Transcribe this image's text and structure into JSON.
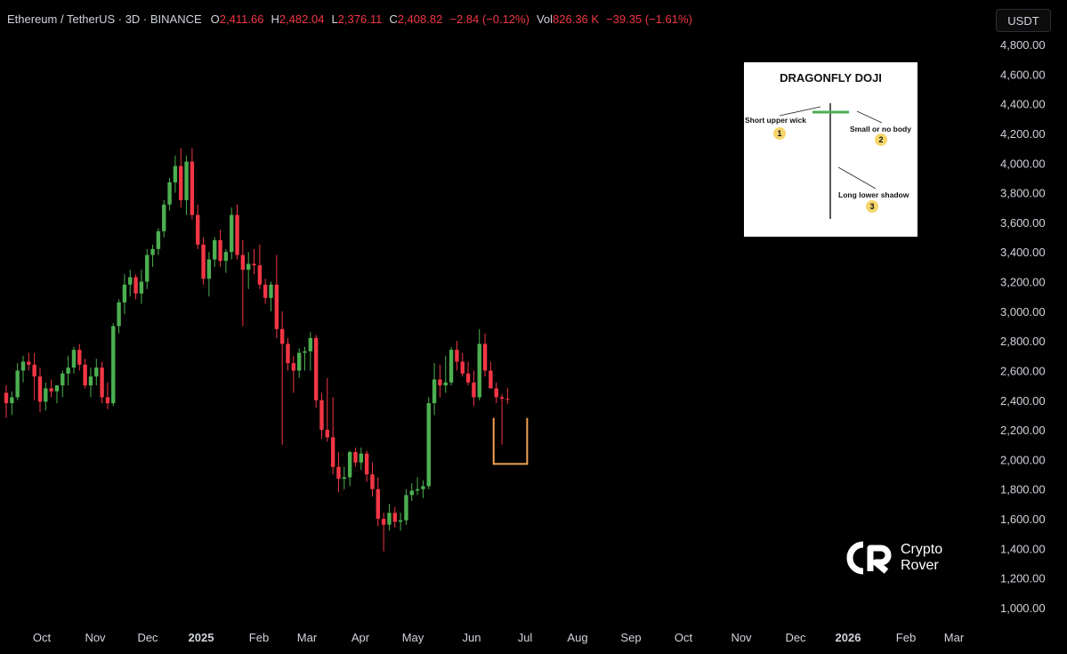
{
  "header": {
    "title": "Ethereum / TetherUS · 3D · BINANCE",
    "open_label": "O",
    "open": "2,411.66",
    "high_label": "H",
    "high": "2,482.04",
    "low_label": "L",
    "low": "2,376.11",
    "close_label": "C",
    "close": "2,408.82",
    "change": "−2.84 (−0.12%)",
    "vol_label": "Vol",
    "vol": "826.36 K",
    "vol_change": "−39.35 (−1.61%)"
  },
  "unit_badge": "USDT",
  "colors": {
    "up": "#26a69a",
    "up_body": "#4caf50",
    "down": "#f23645",
    "marker": "#f0a252",
    "background": "#000000"
  },
  "inset": {
    "title": "DRAGONFLY DOJI",
    "label1": "Short upper wick",
    "num1": "1",
    "label2": "Small or no body",
    "num2": "2",
    "label3": "Long lower shadow",
    "num3": "3"
  },
  "logo": {
    "line1": "Crypto",
    "line2": "Rover"
  },
  "chart_data": {
    "type": "candlestick",
    "y_ticks": [
      "4,800.00",
      "4,600.00",
      "4,400.00",
      "4,200.00",
      "4,000.00",
      "3,800.00",
      "3,600.00",
      "3,400.00",
      "3,200.00",
      "3,000.00",
      "2,800.00",
      "2,600.00",
      "2,400.00",
      "2,200.00",
      "2,000.00",
      "1,800.00",
      "1,600.00",
      "1,400.00",
      "1,200.00",
      "1,000.00"
    ],
    "ylim": [
      1000,
      4800
    ],
    "x_ticks": [
      {
        "label": "Oct",
        "bold": false
      },
      {
        "label": "Nov",
        "bold": false
      },
      {
        "label": "Dec",
        "bold": false
      },
      {
        "label": "2025",
        "bold": true
      },
      {
        "label": "Feb",
        "bold": false
      },
      {
        "label": "Mar",
        "bold": false
      },
      {
        "label": "Apr",
        "bold": false
      },
      {
        "label": "May",
        "bold": false
      },
      {
        "label": "Jun",
        "bold": false
      },
      {
        "label": "Jul",
        "bold": false
      },
      {
        "label": "Aug",
        "bold": false
      },
      {
        "label": "Sep",
        "bold": false
      },
      {
        "label": "Oct",
        "bold": false
      },
      {
        "label": "Nov",
        "bold": false
      },
      {
        "label": "Dec",
        "bold": false
      },
      {
        "label": "2026",
        "bold": true
      },
      {
        "label": "Feb",
        "bold": false
      },
      {
        "label": "Mar",
        "bold": false
      }
    ],
    "candles": [
      [
        2450,
        2500,
        2280,
        2380
      ],
      [
        2380,
        2460,
        2300,
        2420
      ],
      [
        2420,
        2650,
        2400,
        2600
      ],
      [
        2600,
        2700,
        2520,
        2660
      ],
      [
        2660,
        2720,
        2600,
        2640
      ],
      [
        2640,
        2720,
        2400,
        2560
      ],
      [
        2560,
        2620,
        2320,
        2390
      ],
      [
        2390,
        2520,
        2330,
        2480
      ],
      [
        2480,
        2540,
        2420,
        2460
      ],
      [
        2460,
        2500,
        2380,
        2500
      ],
      [
        2500,
        2600,
        2420,
        2580
      ],
      [
        2580,
        2700,
        2500,
        2620
      ],
      [
        2620,
        2760,
        2580,
        2740
      ],
      [
        2740,
        2780,
        2600,
        2640
      ],
      [
        2640,
        2680,
        2480,
        2500
      ],
      [
        2500,
        2620,
        2420,
        2560
      ],
      [
        2560,
        2680,
        2500,
        2620
      ],
      [
        2620,
        2660,
        2380,
        2420
      ],
      [
        2420,
        2520,
        2340,
        2380
      ],
      [
        2380,
        2920,
        2360,
        2900
      ],
      [
        2900,
        3080,
        2850,
        3060
      ],
      [
        3060,
        3250,
        2980,
        3180
      ],
      [
        3180,
        3280,
        3100,
        3230
      ],
      [
        3230,
        3250,
        3080,
        3120
      ],
      [
        3120,
        3280,
        3050,
        3200
      ],
      [
        3200,
        3420,
        3150,
        3380
      ],
      [
        3380,
        3450,
        3300,
        3420
      ],
      [
        3420,
        3560,
        3380,
        3540
      ],
      [
        3540,
        3750,
        3500,
        3720
      ],
      [
        3720,
        3900,
        3680,
        3870
      ],
      [
        3870,
        4050,
        3800,
        3980
      ],
      [
        3980,
        4100,
        3700,
        3750
      ],
      [
        3750,
        4050,
        3650,
        4010
      ],
      [
        4010,
        4100,
        3620,
        3650
      ],
      [
        3650,
        3720,
        3420,
        3450
      ],
      [
        3450,
        3500,
        3180,
        3220
      ],
      [
        3220,
        3400,
        3100,
        3350
      ],
      [
        3350,
        3500,
        3300,
        3480
      ],
      [
        3480,
        3550,
        3300,
        3340
      ],
      [
        3340,
        3420,
        3260,
        3400
      ],
      [
        3400,
        3700,
        3350,
        3650
      ],
      [
        3650,
        3720,
        3350,
        3380
      ],
      [
        3380,
        3480,
        2900,
        3280
      ],
      [
        3280,
        3400,
        3150,
        3320
      ],
      [
        3320,
        3420,
        3250,
        3310
      ],
      [
        3310,
        3450,
        3150,
        3180
      ],
      [
        3180,
        3220,
        3050,
        3090
      ],
      [
        3090,
        3200,
        3000,
        3180
      ],
      [
        3180,
        3380,
        2820,
        2880
      ],
      [
        2880,
        3000,
        2100,
        2780
      ],
      [
        2780,
        2820,
        2600,
        2650
      ],
      [
        2650,
        2700,
        2450,
        2600
      ],
      [
        2600,
        2750,
        2550,
        2720
      ],
      [
        2720,
        2760,
        2600,
        2730
      ],
      [
        2730,
        2860,
        2600,
        2820
      ],
      [
        2820,
        2840,
        2350,
        2400
      ],
      [
        2400,
        2450,
        2140,
        2200
      ],
      [
        2200,
        2550,
        2120,
        2150
      ],
      [
        2150,
        2420,
        1900,
        1950
      ],
      [
        1950,
        2050,
        1780,
        1870
      ],
      [
        1870,
        1950,
        1800,
        1880
      ],
      [
        1880,
        2060,
        1820,
        2050
      ],
      [
        2050,
        2080,
        1950,
        1980
      ],
      [
        1980,
        2080,
        1930,
        2040
      ],
      [
        2040,
        2060,
        1850,
        1900
      ],
      [
        1900,
        1980,
        1750,
        1800
      ],
      [
        1800,
        1880,
        1550,
        1600
      ],
      [
        1600,
        1640,
        1380,
        1560
      ],
      [
        1560,
        1700,
        1520,
        1640
      ],
      [
        1640,
        1680,
        1540,
        1580
      ],
      [
        1580,
        1640,
        1520,
        1590
      ],
      [
        1590,
        1800,
        1560,
        1760
      ],
      [
        1760,
        1840,
        1720,
        1790
      ],
      [
        1790,
        1880,
        1760,
        1800
      ],
      [
        1800,
        1860,
        1740,
        1820
      ],
      [
        1820,
        2420,
        1800,
        2380
      ],
      [
        2380,
        2650,
        2300,
        2540
      ],
      [
        2540,
        2640,
        2420,
        2500
      ],
      [
        2500,
        2700,
        2450,
        2520
      ],
      [
        2520,
        2760,
        2500,
        2740
      ],
      [
        2740,
        2800,
        2600,
        2660
      ],
      [
        2660,
        2720,
        2560,
        2580
      ],
      [
        2580,
        2660,
        2500,
        2520
      ],
      [
        2520,
        2600,
        2360,
        2420
      ],
      [
        2420,
        2880,
        2400,
        2780
      ],
      [
        2780,
        2850,
        2560,
        2600
      ],
      [
        2600,
        2660,
        2480,
        2480
      ],
      [
        2480,
        2520,
        2380,
        2420
      ],
      [
        2420,
        2440,
        2100,
        2410
      ],
      [
        2410,
        2482,
        2376,
        2409
      ]
    ],
    "marker_box": {
      "x_from_candle": 87,
      "x_to_candle": 92,
      "y_low": 1970,
      "y_high": 2280
    }
  }
}
